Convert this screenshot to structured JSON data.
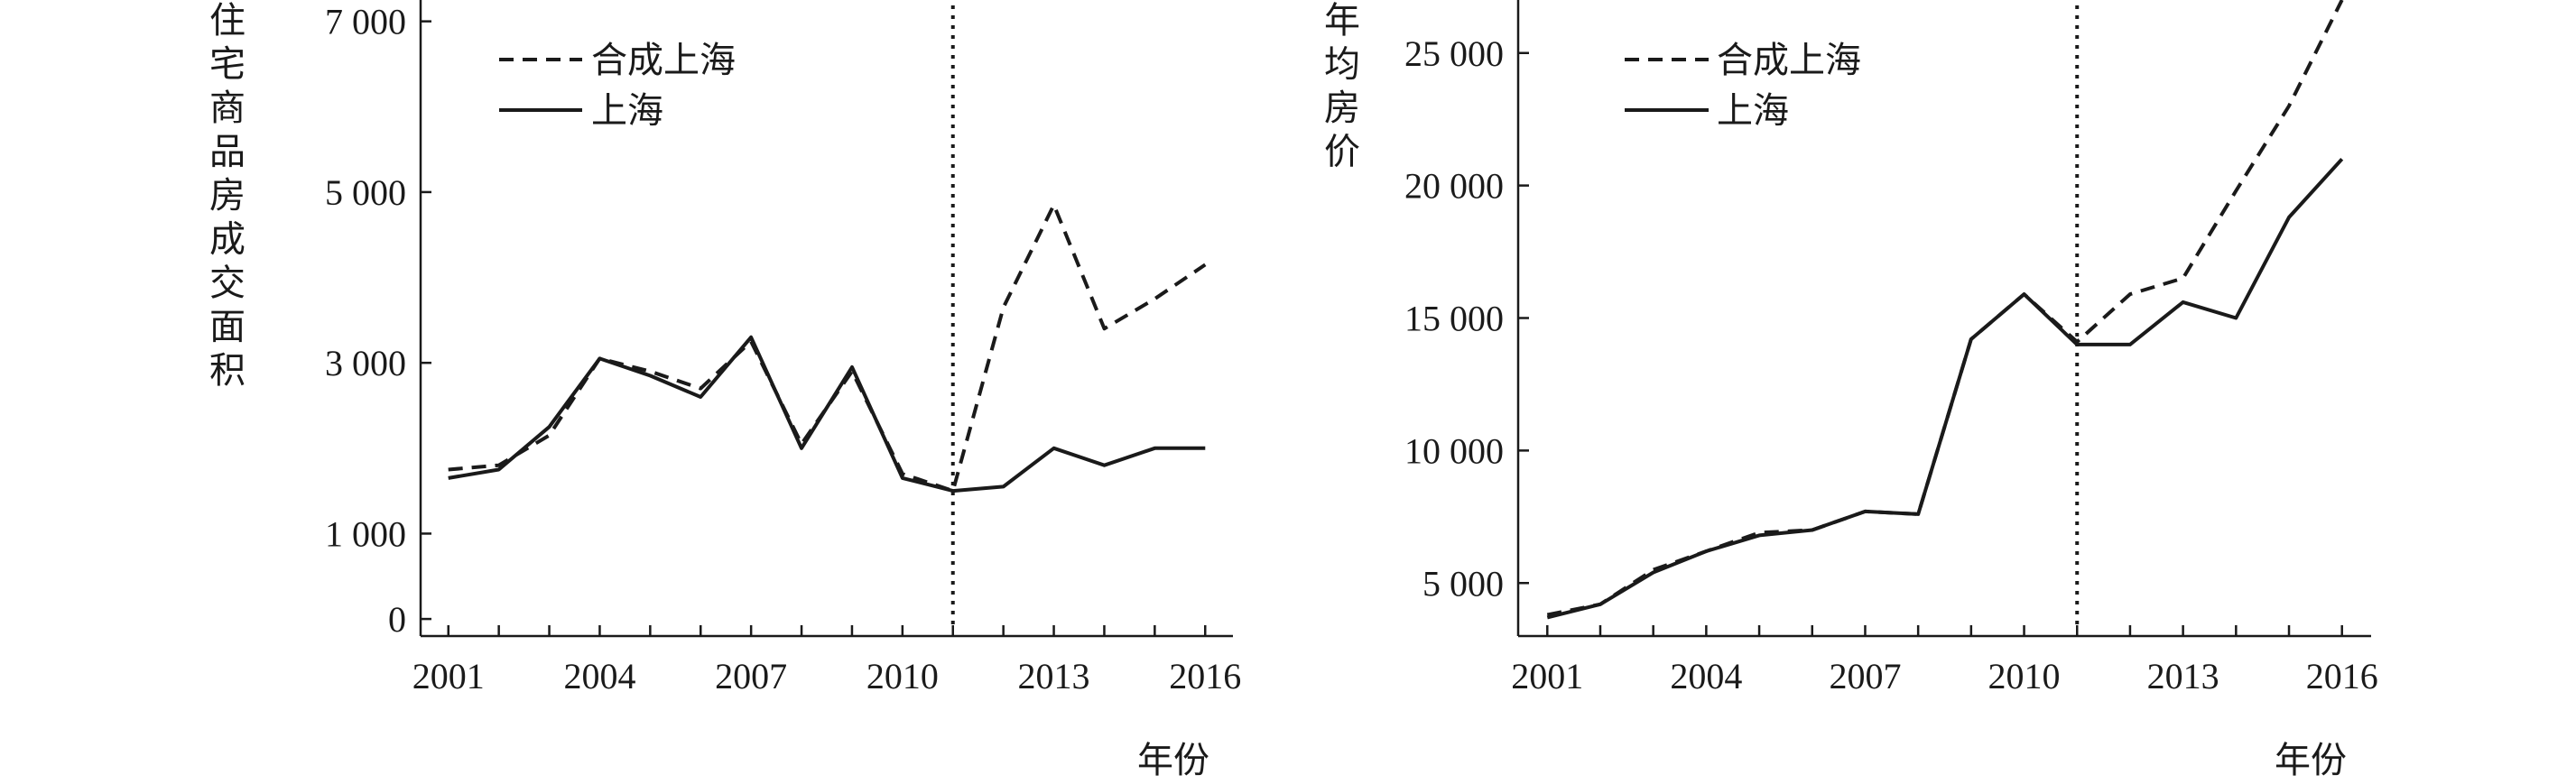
{
  "chart_data": [
    {
      "type": "line",
      "ylabel": "住宅商品房成交面积",
      "xlabel": "年份",
      "x": [
        2001,
        2002,
        2003,
        2004,
        2005,
        2006,
        2007,
        2008,
        2009,
        2010,
        2011,
        2012,
        2013,
        2014,
        2015,
        2016
      ],
      "xticks": [
        "2001",
        "2004",
        "2007",
        "2010",
        "2013",
        "2016"
      ],
      "yticks": [
        {
          "value": 0,
          "label": "0"
        },
        {
          "value": 1000,
          "label": "1 000"
        },
        {
          "value": 3000,
          "label": "3 000"
        },
        {
          "value": 5000,
          "label": "5 000"
        },
        {
          "value": 7000,
          "label": "7 000"
        }
      ],
      "ylim": [
        -200,
        7250
      ],
      "xlim": [
        2000.45,
        2016.55
      ],
      "vline_x": 2011,
      "legend": "top-left",
      "series": [
        {
          "name": "合成上海",
          "style": "dashed",
          "values": [
            1750,
            1800,
            2150,
            3050,
            2900,
            2700,
            3250,
            2050,
            2900,
            1700,
            1500,
            3650,
            4850,
            3400,
            3750,
            4150
          ]
        },
        {
          "name": "上海",
          "style": "solid",
          "values": [
            1650,
            1750,
            2250,
            3050,
            2850,
            2600,
            3300,
            2000,
            2950,
            1650,
            1500,
            1550,
            2000,
            1800,
            2000,
            2000
          ]
        }
      ]
    },
    {
      "type": "line",
      "ylabel": "年均房价",
      "xlabel": "年份",
      "x": [
        2001,
        2002,
        2003,
        2004,
        2005,
        2006,
        2007,
        2008,
        2009,
        2010,
        2011,
        2012,
        2013,
        2014,
        2015,
        2016
      ],
      "xticks": [
        "2001",
        "2004",
        "2007",
        "2010",
        "2013",
        "2016"
      ],
      "yticks": [
        {
          "value": 5000,
          "label": "5 000"
        },
        {
          "value": 10000,
          "label": "10 000"
        },
        {
          "value": 15000,
          "label": "15 000"
        },
        {
          "value": 20000,
          "label": "20 000"
        },
        {
          "value": 25000,
          "label": "25 000"
        }
      ],
      "ylim": [
        3000,
        27000
      ],
      "xlim": [
        2000.45,
        2016.55
      ],
      "vline_x": 2011,
      "legend": "top-left",
      "series": [
        {
          "name": "合成上海",
          "style": "dashed",
          "values": [
            3800,
            4200,
            5500,
            6200,
            6900,
            7000,
            7700,
            7600,
            14200,
            15900,
            14100,
            15900,
            16500,
            19800,
            23000,
            27000
          ]
        },
        {
          "name": "上海",
          "style": "solid",
          "values": [
            3700,
            4200,
            5400,
            6200,
            6800,
            7000,
            7700,
            7600,
            14200,
            15900,
            14000,
            14000,
            15600,
            15000,
            18800,
            21000
          ]
        }
      ]
    }
  ]
}
